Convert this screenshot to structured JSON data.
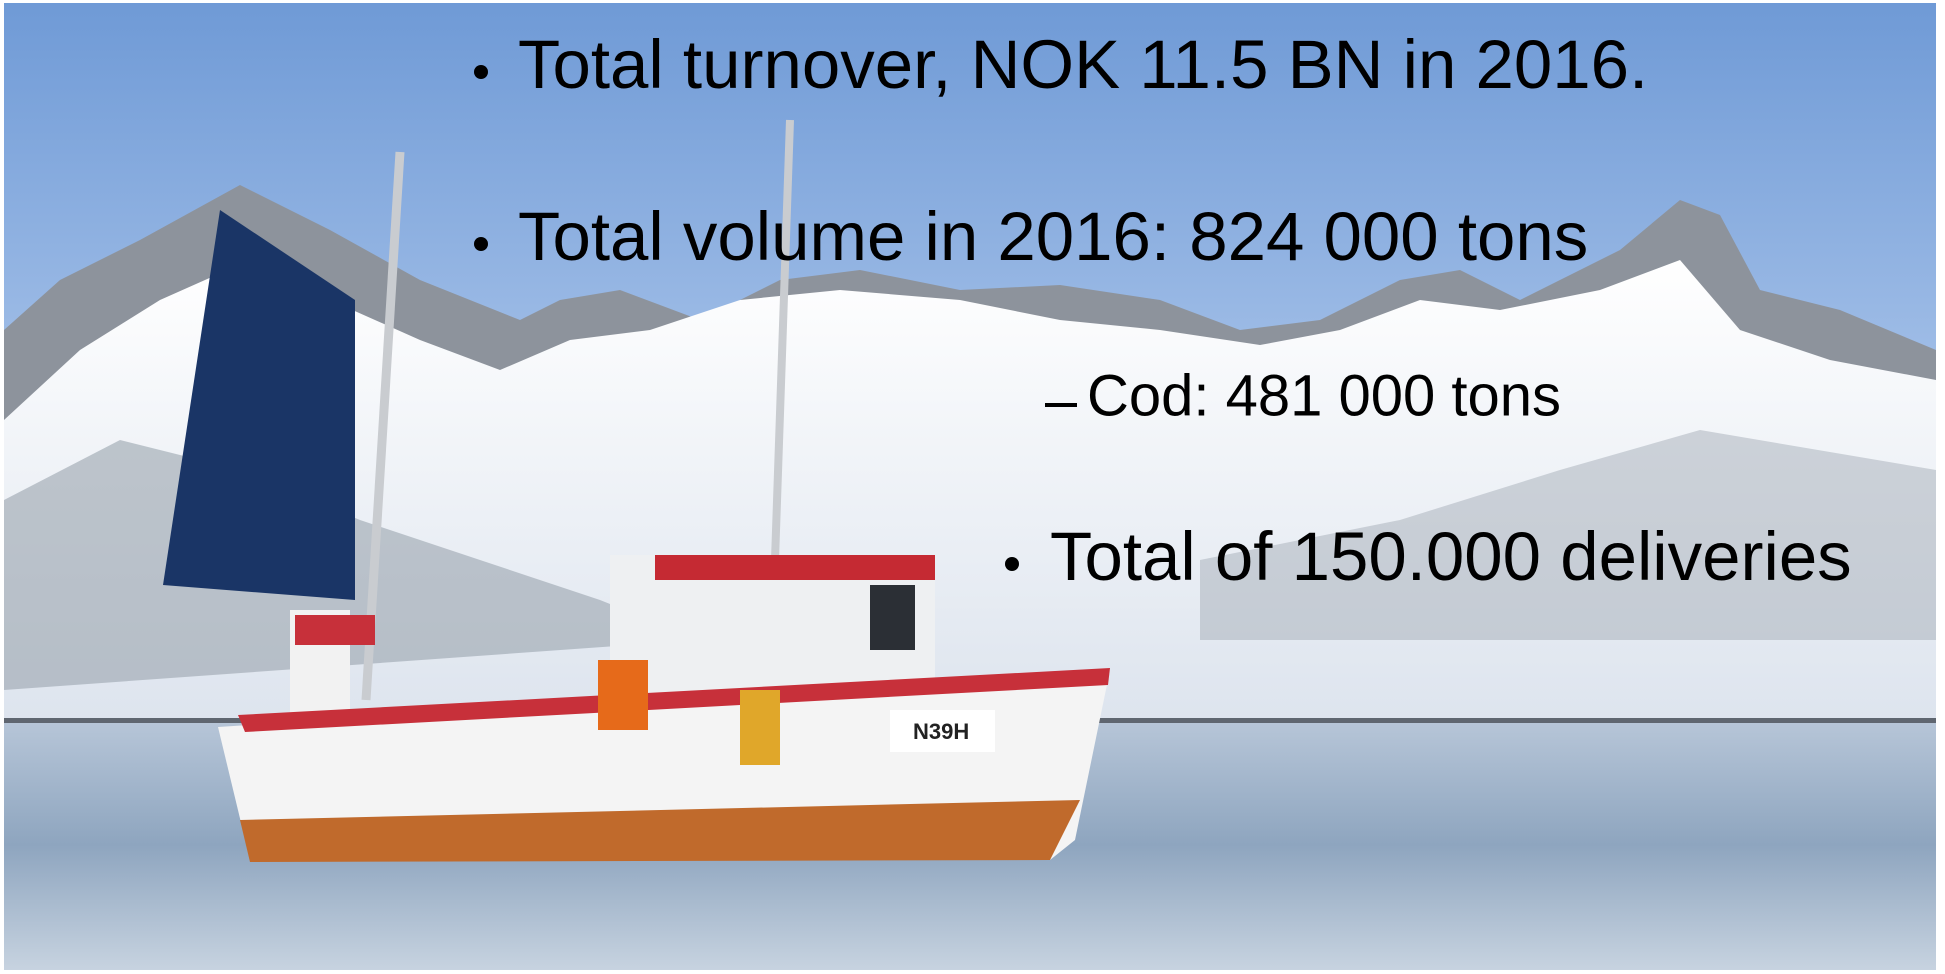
{
  "slide": {
    "bullets": [
      {
        "text": "Total turnover, NOK 11.5 BN in 2016."
      },
      {
        "text": "Total volume in 2016: 824 000 tons",
        "sub": [
          "Cod: 481 000 tons"
        ]
      },
      {
        "text": "Total of 150.000 deliveries"
      }
    ]
  }
}
